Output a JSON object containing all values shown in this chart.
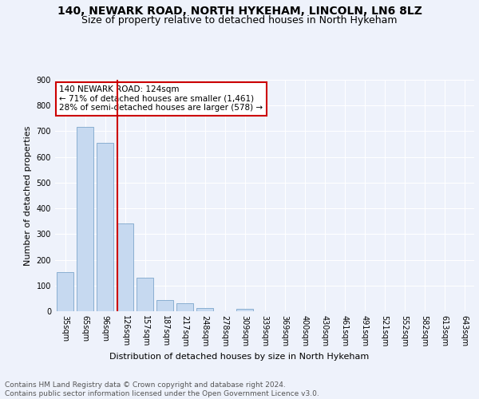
{
  "title1": "140, NEWARK ROAD, NORTH HYKEHAM, LINCOLN, LN6 8LZ",
  "title2": "Size of property relative to detached houses in North Hykeham",
  "xlabel": "Distribution of detached houses by size in North Hykeham",
  "ylabel": "Number of detached properties",
  "categories": [
    "35sqm",
    "65sqm",
    "96sqm",
    "126sqm",
    "157sqm",
    "187sqm",
    "217sqm",
    "248sqm",
    "278sqm",
    "309sqm",
    "339sqm",
    "369sqm",
    "400sqm",
    "430sqm",
    "461sqm",
    "491sqm",
    "521sqm",
    "552sqm",
    "582sqm",
    "613sqm",
    "643sqm"
  ],
  "values": [
    152,
    716,
    656,
    340,
    130,
    42,
    30,
    13,
    0,
    9,
    0,
    0,
    0,
    0,
    0,
    0,
    0,
    0,
    0,
    0,
    0
  ],
  "bar_color": "#c6d9f0",
  "bar_edge_color": "#7da6cc",
  "vline_x_idx": 2.6,
  "vline_color": "#cc0000",
  "annotation_text": "140 NEWARK ROAD: 124sqm\n← 71% of detached houses are smaller (1,461)\n28% of semi-detached houses are larger (578) →",
  "annotation_box_color": "white",
  "annotation_box_edge_color": "#cc0000",
  "ylim": [
    0,
    900
  ],
  "yticks": [
    0,
    100,
    200,
    300,
    400,
    500,
    600,
    700,
    800,
    900
  ],
  "footer_text": "Contains HM Land Registry data © Crown copyright and database right 2024.\nContains public sector information licensed under the Open Government Licence v3.0.",
  "background_color": "#eef2fb",
  "grid_color": "#ffffff",
  "title_fontsize": 10,
  "subtitle_fontsize": 9,
  "axis_label_fontsize": 8,
  "tick_fontsize": 7,
  "annotation_fontsize": 7.5,
  "footer_fontsize": 6.5
}
